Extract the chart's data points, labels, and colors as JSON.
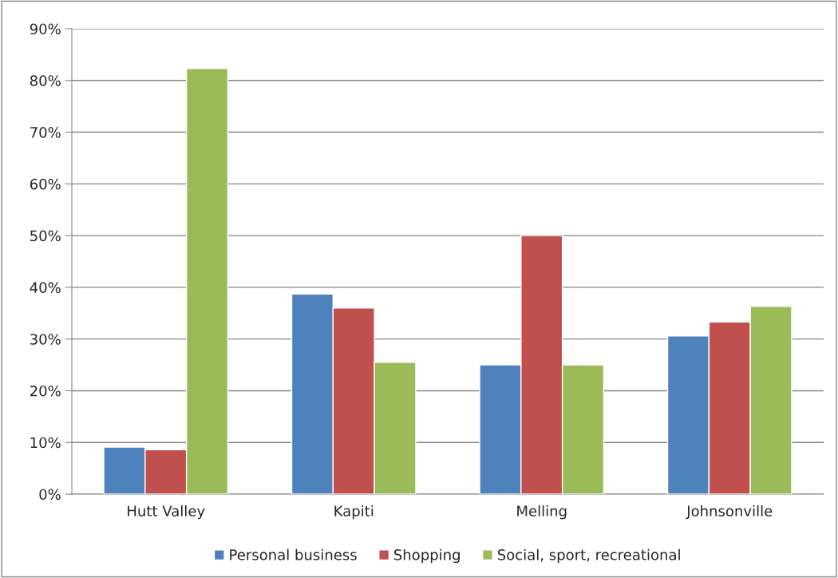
{
  "chart_data": {
    "type": "bar",
    "categories": [
      "Hutt Valley",
      "Kapiti",
      "Melling",
      "Johnsonville"
    ],
    "series": [
      {
        "name": "Personal business",
        "color": "#4f81bd",
        "values": [
          9.1,
          38.7,
          25.0,
          30.6
        ]
      },
      {
        "name": "Shopping",
        "color": "#c0504d",
        "values": [
          8.6,
          36.0,
          50.0,
          33.3
        ]
      },
      {
        "name": "Social, sport, recreational",
        "color": "#9bbb59",
        "values": [
          82.3,
          25.5,
          25.0,
          36.3
        ]
      }
    ],
    "ylim": [
      0,
      90
    ],
    "yticks": [
      {
        "value": 0,
        "label": "0%"
      },
      {
        "value": 10,
        "label": "10%"
      },
      {
        "value": 20,
        "label": "20%"
      },
      {
        "value": 30,
        "label": "30%"
      },
      {
        "value": 40,
        "label": "40%"
      },
      {
        "value": 50,
        "label": "50%"
      },
      {
        "value": 60,
        "label": "60%"
      },
      {
        "value": 70,
        "label": "70%"
      },
      {
        "value": 80,
        "label": "80%"
      },
      {
        "value": 90,
        "label": "90%"
      }
    ],
    "grid": "y",
    "legend": "bottom"
  }
}
